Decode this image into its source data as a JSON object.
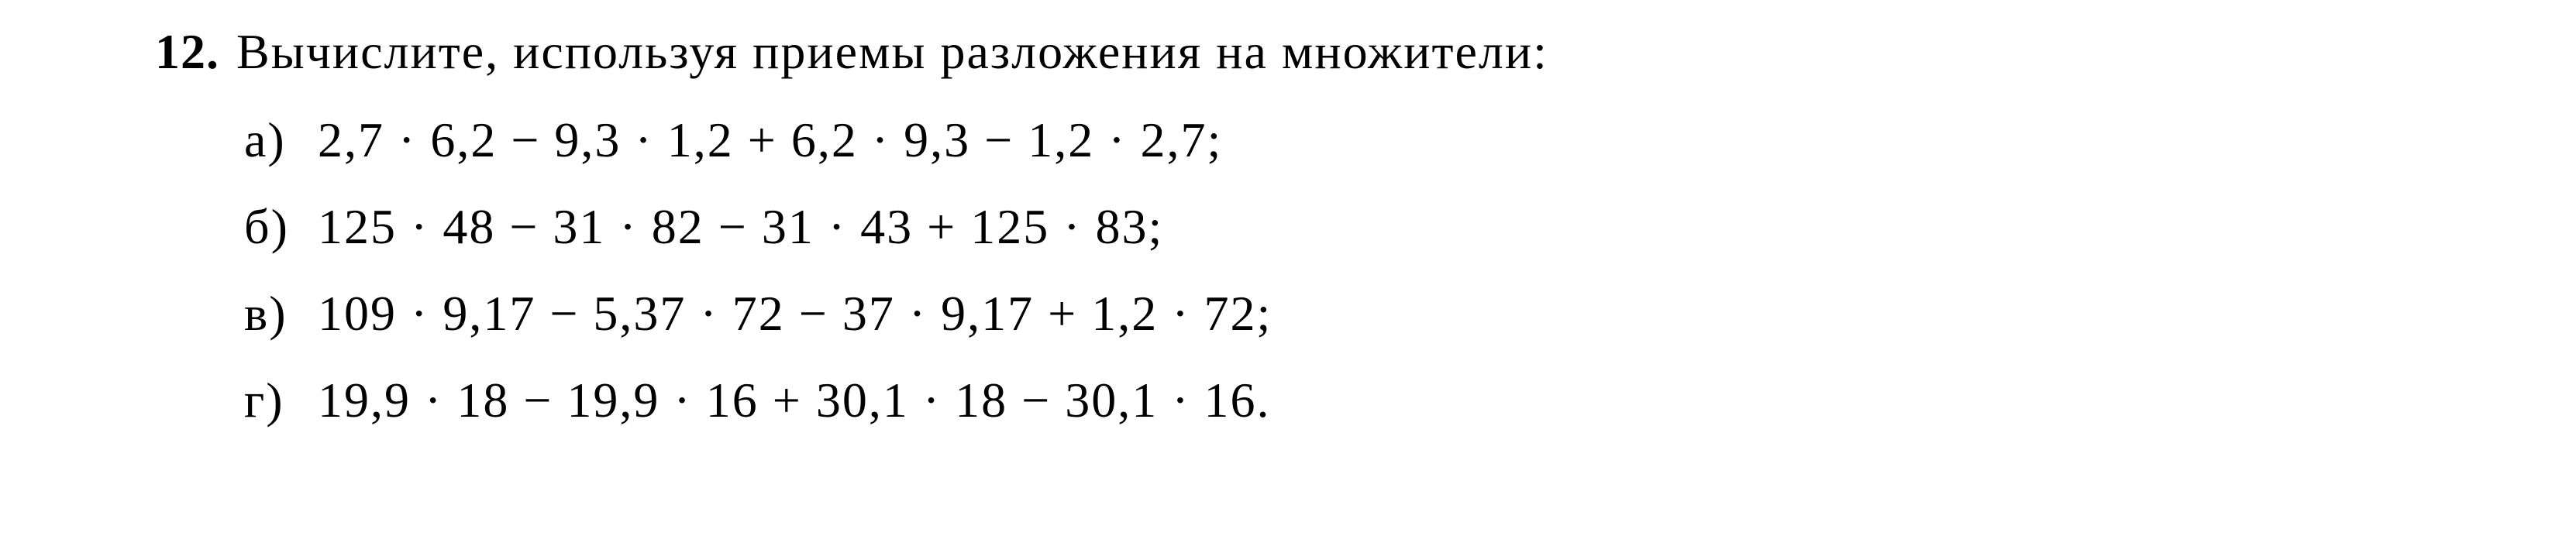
{
  "problem": {
    "number": "12.",
    "text": "Вычислите, используя приемы разложения на множители:"
  },
  "items": [
    {
      "label": "а)",
      "expr": "2,7 · 6,2 − 9,3 · 1,2 + 6,2 · 9,3 − 1,2 · 2,7;"
    },
    {
      "label": "б)",
      "expr": "125 · 48 − 31 · 82 − 31 · 43 + 125 · 83;"
    },
    {
      "label": "в)",
      "expr": "109 · 9,17 − 5,37 · 72 − 37 · 9,17 + 1,2 · 72;"
    },
    {
      "label": "г)",
      "expr": "19,9 · 18 − 19,9 · 16 + 30,1 · 18 − 30,1 · 16."
    }
  ],
  "style": {
    "background_color": "#ffffff",
    "text_color": "#000000",
    "font_family": "Century Schoolbook, Georgia, Times New Roman, serif",
    "number_fontsize": 64,
    "text_fontsize": 64,
    "item_fontsize": 64,
    "number_fontweight": 700
  }
}
